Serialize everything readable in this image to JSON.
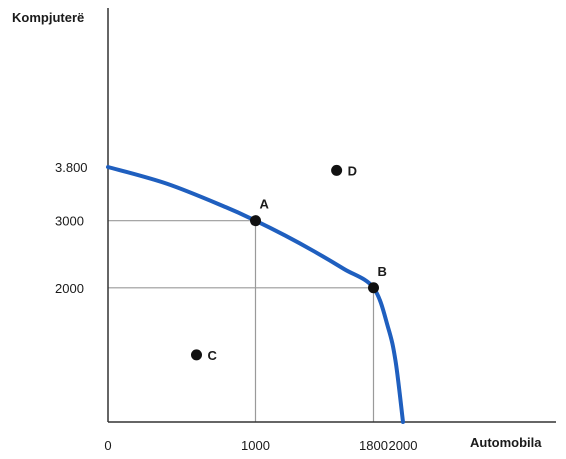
{
  "chart_data": {
    "type": "line",
    "title": "",
    "xlabel": "Automobila",
    "ylabel": "Kompjuterë",
    "xlim": [
      0,
      2000
    ],
    "ylim": [
      0,
      3800
    ],
    "x_ticks": [
      {
        "value": 0,
        "label": "0"
      },
      {
        "value": 1000,
        "label": "1000"
      },
      {
        "value": 1800,
        "label": "1800"
      },
      {
        "value": 2000,
        "label": "2000"
      }
    ],
    "y_ticks": [
      {
        "value": 2000,
        "label": "2000"
      },
      {
        "value": 3000,
        "label": "3000"
      },
      {
        "value": 3800,
        "label": "3.800"
      }
    ],
    "series": [
      {
        "color": "#1f5fbf",
        "x": [
          0,
          400,
          800,
          1000,
          1200,
          1400,
          1600,
          1800,
          1900,
          1950,
          2000
        ],
        "y": [
          3800,
          3550,
          3200,
          3000,
          2780,
          2540,
          2280,
          2000,
          1400,
          900,
          0
        ]
      }
    ],
    "points": [
      {
        "label": "A",
        "x": 1000,
        "y": 3000
      },
      {
        "label": "B",
        "x": 1800,
        "y": 2000
      },
      {
        "label": "C",
        "x": 600,
        "y": 1000
      },
      {
        "label": "D",
        "x": 1550,
        "y": 3750
      }
    ],
    "guides": [
      {
        "x": 1000,
        "y": 3000
      },
      {
        "x": 1800,
        "y": 2000
      }
    ],
    "grid": false,
    "legend": "none"
  }
}
